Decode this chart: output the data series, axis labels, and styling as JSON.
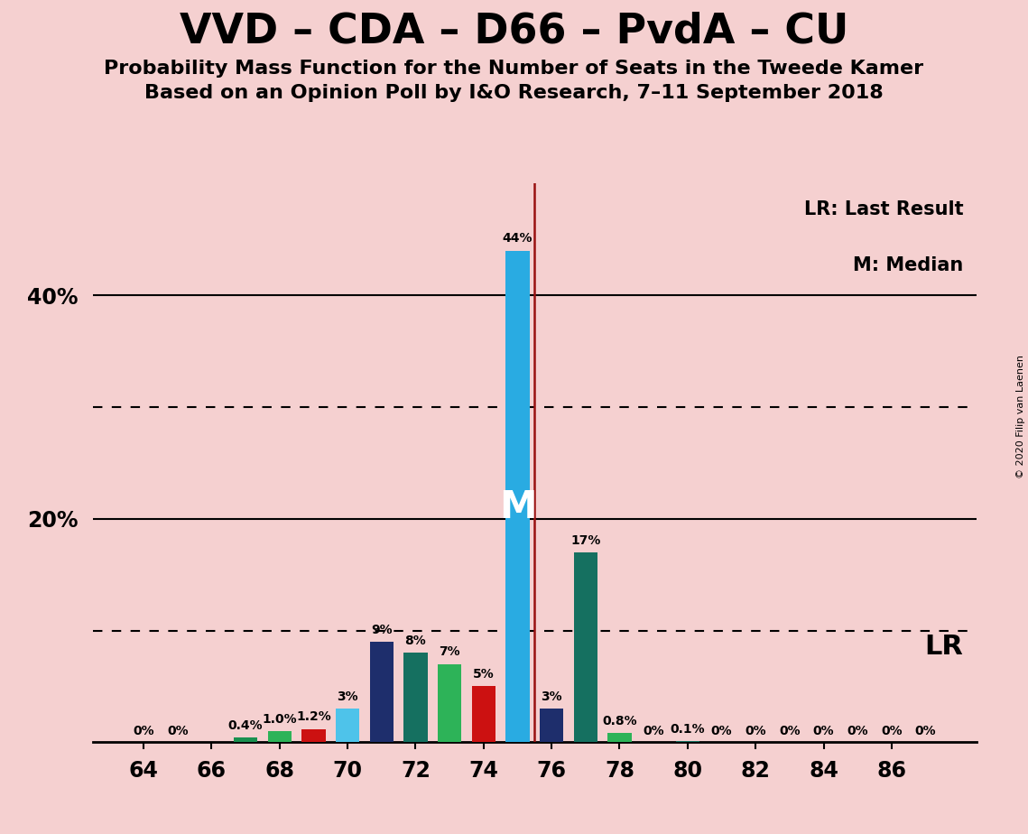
{
  "title": "VVD – CDA – D66 – PvdA – CU",
  "subtitle1": "Probability Mass Function for the Number of Seats in the Tweede Kamer",
  "subtitle2": "Based on an Opinion Poll by I&O Research, 7–11 September 2018",
  "copyright": "© 2020 Filip van Laenen",
  "background_color": "#f5d0d0",
  "bars": [
    {
      "seat": 64,
      "value": 0.0,
      "color": null,
      "label": "0%"
    },
    {
      "seat": 65,
      "value": 0.0,
      "color": null,
      "label": "0%"
    },
    {
      "seat": 66,
      "value": 0.0,
      "color": null,
      "label": ""
    },
    {
      "seat": 67,
      "value": 0.4,
      "color": "#1A9050",
      "label": "0.4%"
    },
    {
      "seat": 68,
      "value": 1.0,
      "color": "#2DB358",
      "label": "1.0%"
    },
    {
      "seat": 69,
      "value": 1.2,
      "color": "#CC1111",
      "label": "1.2%"
    },
    {
      "seat": 70,
      "value": 3.0,
      "color": "#4EC3EA",
      "label": "3%"
    },
    {
      "seat": 71,
      "value": 9.0,
      "color": "#1E2E6C",
      "label": "9%"
    },
    {
      "seat": 72,
      "value": 8.0,
      "color": "#157060",
      "label": "8%"
    },
    {
      "seat": 73,
      "value": 7.0,
      "color": "#2DB358",
      "label": "7%"
    },
    {
      "seat": 74,
      "value": 5.0,
      "color": "#CC1111",
      "label": "5%"
    },
    {
      "seat": 75,
      "value": 44.0,
      "color": "#29ABE2",
      "label": "44%"
    },
    {
      "seat": 76,
      "value": 3.0,
      "color": "#1E2E6C",
      "label": "3%"
    },
    {
      "seat": 77,
      "value": 17.0,
      "color": "#157060",
      "label": "17%"
    },
    {
      "seat": 78,
      "value": 0.8,
      "color": "#2DB358",
      "label": "0.8%"
    },
    {
      "seat": 79,
      "value": 0.0,
      "color": null,
      "label": "0%"
    },
    {
      "seat": 80,
      "value": 0.1,
      "color": "#157060",
      "label": "0.1%"
    },
    {
      "seat": 81,
      "value": 0.0,
      "color": null,
      "label": "0%"
    },
    {
      "seat": 82,
      "value": 0.0,
      "color": null,
      "label": "0%"
    },
    {
      "seat": 83,
      "value": 0.0,
      "color": null,
      "label": "0%"
    },
    {
      "seat": 84,
      "value": 0.0,
      "color": null,
      "label": "0%"
    },
    {
      "seat": 85,
      "value": 0.0,
      "color": null,
      "label": "0%"
    },
    {
      "seat": 86,
      "value": 0.0,
      "color": null,
      "label": "0%"
    },
    {
      "seat": 87,
      "value": 0.0,
      "color": null,
      "label": "0%"
    }
  ],
  "xtick_positions": [
    64,
    66,
    68,
    70,
    72,
    74,
    76,
    78,
    80,
    82,
    84,
    86
  ],
  "dotted_lines": [
    10,
    30
  ],
  "solid_lines": [
    20,
    40
  ],
  "median_seat": 75,
  "lr_x": 75.5,
  "ylim": [
    0,
    50
  ],
  "xlim": [
    62.5,
    88.5
  ],
  "bar_width": 0.7,
  "lr_line_color": "#991111",
  "legend_lr": "LR: Last Result",
  "legend_m": "M: Median",
  "lr_label": "LR",
  "label_fontsize": 10,
  "tick_fontsize": 17,
  "title_fontsize": 33,
  "subtitle_fontsize": 16
}
